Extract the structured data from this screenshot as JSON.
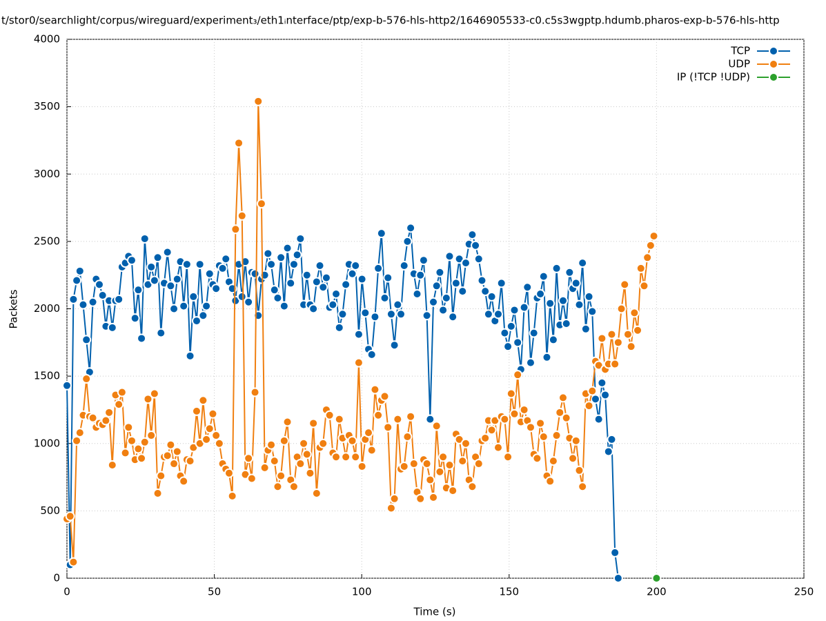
{
  "chart_data": {
    "type": "line",
    "title": "t/stor0/searchlight/corpus/wireguard/experiment₃/eth1ᵢnterface/ptp/exp-b-576-hls-http2/1646905533-c0.c5s3wgptp.hdumb.pharos-exp-b-576-hls-http",
    "x_label": "Time (s)",
    "y_label": "Packets",
    "xlim": [
      0,
      250
    ],
    "xticks": [
      0,
      50,
      100,
      150,
      200,
      250
    ],
    "ylim": [
      0,
      4000
    ],
    "yticks": [
      0,
      500,
      1000,
      1500,
      2000,
      2500,
      3000,
      3500,
      4000
    ],
    "grid": true,
    "legend": "top-right",
    "x": [
      0,
      1.1,
      2.2,
      3.3,
      4.4,
      5.5,
      6.6,
      7.7,
      8.8,
      9.9,
      11,
      12.1,
      13.2,
      14.3,
      15.4,
      16.5,
      17.6,
      18.7,
      19.8,
      20.9,
      22,
      23.1,
      24.2,
      25.3,
      26.4,
      27.5,
      28.6,
      29.7,
      30.8,
      31.9,
      33,
      34.1,
      35.2,
      36.3,
      37.4,
      38.5,
      39.6,
      40.7,
      41.8,
      42.9,
      44,
      45.1,
      46.2,
      47.3,
      48.4,
      49.5,
      50.6,
      51.7,
      52.8,
      53.9,
      55,
      56.1,
      57.2,
      58.3,
      59.4,
      60.5,
      61.6,
      62.7,
      63.8,
      64.9,
      66,
      67.1,
      68.2,
      69.3,
      70.4,
      71.5,
      72.6,
      73.7,
      74.8,
      75.9,
      77,
      78.1,
      79.2,
      80.3,
      81.4,
      82.5,
      83.6,
      84.7,
      85.8,
      86.9,
      88,
      89.1,
      90.2,
      91.3,
      92.4,
      93.5,
      94.6,
      95.7,
      96.8,
      97.9,
      99,
      100.1,
      101.2,
      102.3,
      103.4,
      104.5,
      105.6,
      106.7,
      107.8,
      108.9,
      110,
      111.1,
      112.2,
      113.3,
      114.4,
      115.5,
      116.6,
      117.7,
      118.8,
      119.9,
      121,
      122.1,
      123.2,
      124.3,
      125.4,
      126.5,
      127.6,
      128.7,
      129.8,
      130.9,
      132,
      133.1,
      134.2,
      135.3,
      136.4,
      137.5,
      138.6,
      139.7,
      140.8,
      141.9,
      143,
      144.1,
      145.2,
      146.3,
      147.4,
      148.5,
      149.6,
      150.7,
      151.8,
      152.9,
      154,
      155.1,
      156.2,
      157.3,
      158.4,
      159.5,
      160.6,
      161.7,
      162.8,
      163.9,
      165,
      166.1,
      167.2,
      168.3,
      169.4,
      170.5,
      171.6,
      172.7,
      173.8,
      174.9,
      176,
      177.1,
      178.2,
      179.3,
      180.4,
      181.5,
      182.6,
      183.7,
      184.8,
      185.9,
      187,
      188.1,
      189.2,
      190.3,
      191.4,
      192.5,
      193.6,
      194.7,
      195.8,
      196.9,
      198,
      199.1
    ],
    "series": [
      {
        "name": "TCP",
        "color": "#0060ad",
        "values": [
          1430,
          100,
          2070,
          2210,
          2280,
          2030,
          1770,
          1530,
          2050,
          2220,
          2180,
          2100,
          1870,
          2060,
          1860,
          2060,
          2070,
          2310,
          2340,
          2390,
          2360,
          1930,
          2140,
          1780,
          2520,
          2180,
          2310,
          2210,
          2380,
          1820,
          2190,
          2420,
          2170,
          2000,
          2220,
          2350,
          2020,
          2330,
          1650,
          2090,
          1910,
          2330,
          1950,
          2020,
          2260,
          2180,
          2150,
          2320,
          2300,
          2370,
          2200,
          2150,
          2060,
          2330,
          2090,
          2350,
          2050,
          2270,
          2260,
          1950,
          2220,
          2250,
          2410,
          2330,
          2140,
          2080,
          2380,
          2020,
          2450,
          2190,
          2330,
          2400,
          2520,
          2030,
          2250,
          2030,
          2000,
          2200,
          2320,
          2160,
          2230,
          2010,
          2030,
          2110,
          1860,
          1960,
          2180,
          2330,
          2260,
          2320,
          1810,
          2220,
          1970,
          1700,
          1660,
          1940,
          2300,
          2560,
          2080,
          2230,
          1960,
          1730,
          2030,
          1960,
          2320,
          2500,
          2600,
          2260,
          2110,
          2250,
          2360,
          1950,
          1180,
          2050,
          2170,
          2270,
          1990,
          2080,
          2390,
          1940,
          2190,
          2370,
          2130,
          2340,
          2480,
          2550,
          2470,
          2370,
          2210,
          2130,
          1960,
          2090,
          1910,
          1960,
          2190,
          1820,
          1720,
          1870,
          1990,
          1750,
          1550,
          2010,
          2160,
          1600,
          1820,
          2080,
          2110,
          2240,
          1640,
          2040,
          1770,
          2300,
          1880,
          2060,
          1890,
          2270,
          2150,
          2190,
          2030,
          2340,
          1850,
          2090,
          1980,
          1330,
          1180,
          1450,
          1360,
          940,
          1030,
          190,
          0,
          null,
          null,
          null,
          null,
          null,
          null,
          null,
          null,
          null,
          null,
          null
        ]
      },
      {
        "name": "UDP",
        "color": "#f07f10",
        "values": [
          440,
          460,
          120,
          1020,
          1080,
          1210,
          1480,
          1200,
          1190,
          1120,
          1150,
          1140,
          1170,
          1230,
          840,
          1360,
          1290,
          1380,
          930,
          1120,
          1020,
          880,
          960,
          890,
          1010,
          1330,
          1060,
          1370,
          630,
          760,
          900,
          910,
          990,
          850,
          940,
          760,
          720,
          880,
          870,
          970,
          1240,
          1000,
          1320,
          1030,
          1110,
          1220,
          1060,
          1000,
          850,
          810,
          780,
          610,
          2590,
          3230,
          2690,
          770,
          890,
          740,
          1380,
          3540,
          2780,
          820,
          950,
          990,
          870,
          680,
          760,
          1020,
          1160,
          730,
          680,
          900,
          850,
          1000,
          920,
          780,
          1150,
          630,
          970,
          1000,
          1250,
          1210,
          930,
          900,
          1180,
          1040,
          900,
          1060,
          1020,
          900,
          1600,
          830,
          1030,
          1080,
          950,
          1400,
          1210,
          1320,
          1350,
          1120,
          520,
          590,
          1180,
          810,
          830,
          1050,
          1200,
          850,
          640,
          590,
          880,
          850,
          730,
          600,
          1130,
          790,
          900,
          670,
          840,
          650,
          1070,
          1030,
          870,
          1000,
          730,
          680,
          900,
          850,
          1020,
          1040,
          1170,
          1100,
          1170,
          970,
          1200,
          1180,
          900,
          1370,
          1220,
          1510,
          1160,
          1250,
          1170,
          1120,
          920,
          890,
          1150,
          1050,
          760,
          720,
          870,
          1060,
          1230,
          1340,
          1190,
          1040,
          890,
          1020,
          800,
          680,
          1370,
          1280,
          1390,
          1610,
          1580,
          1780,
          1550,
          1590,
          1810,
          1590,
          1750,
          2000,
          2180,
          1810,
          1720,
          1970,
          1840,
          2300,
          2170,
          2380,
          2470,
          2540
        ]
      },
      {
        "name": "IP (!TCP  !UDP)",
        "color": "#2ca02c",
        "x": [
          200
        ],
        "values": [
          0
        ]
      }
    ]
  }
}
